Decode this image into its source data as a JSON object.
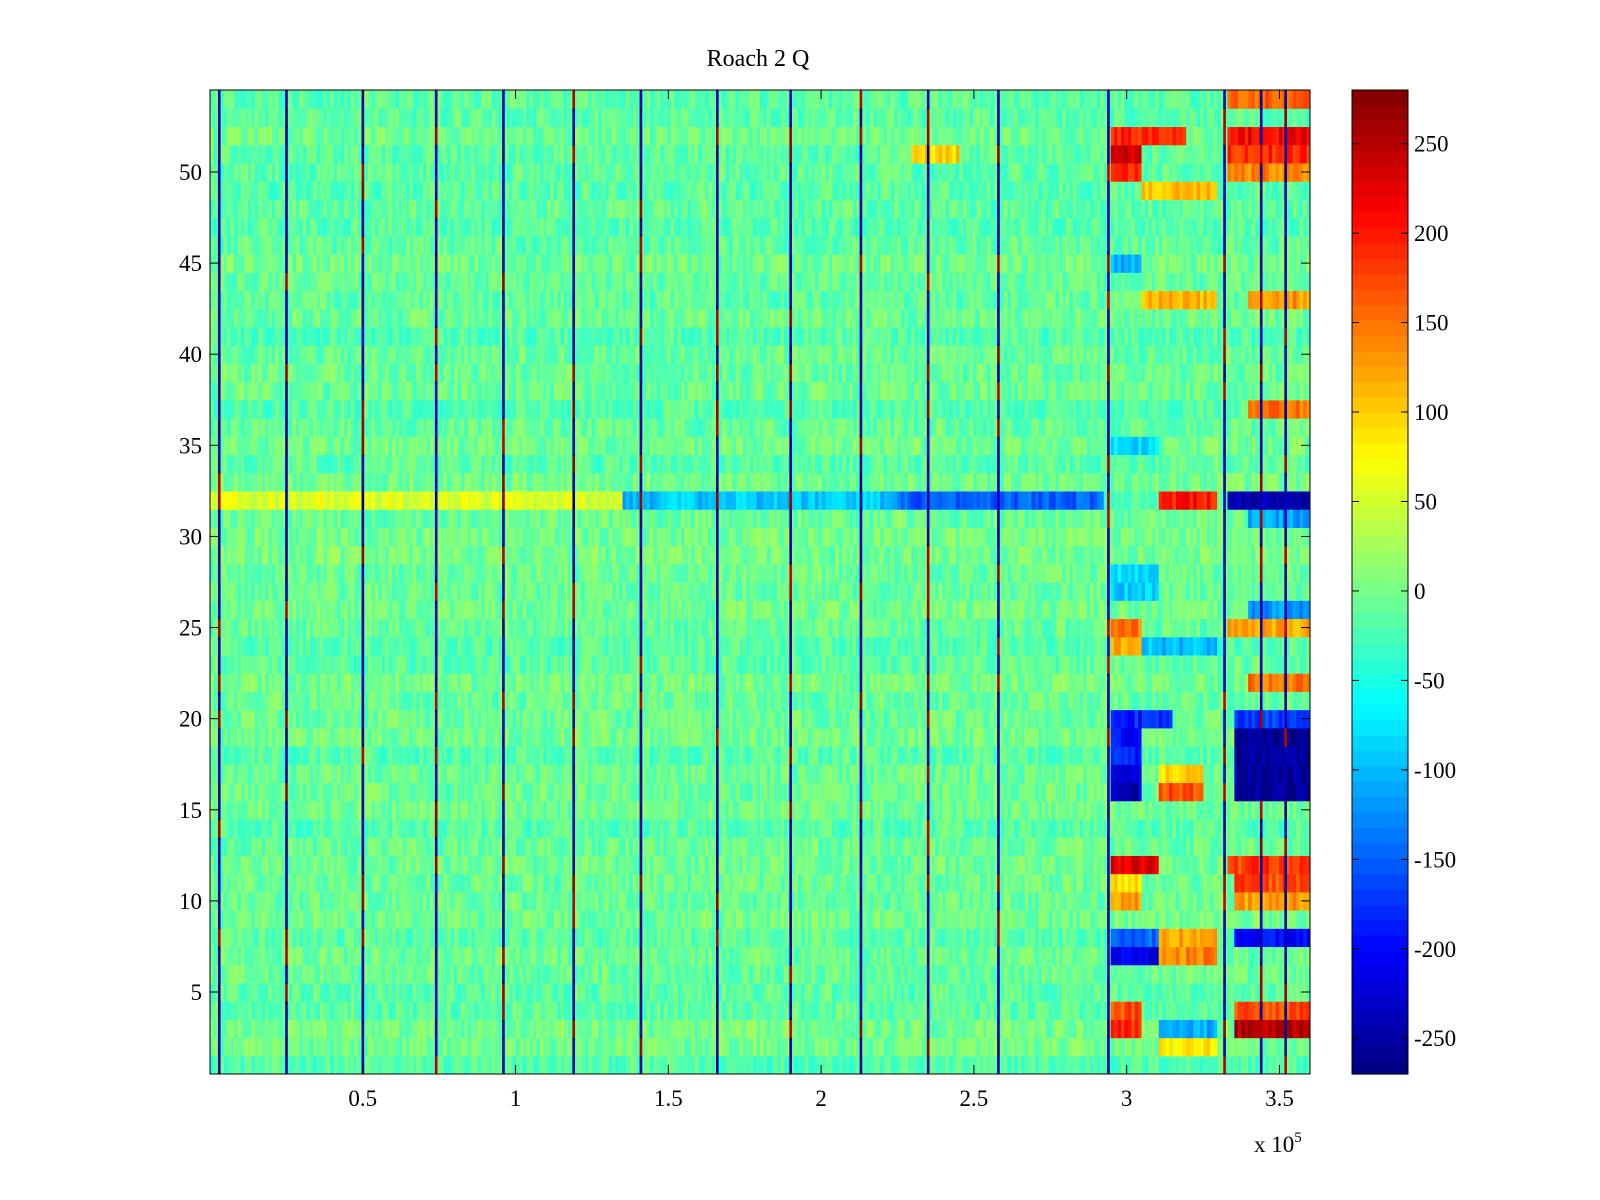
{
  "chart_data": {
    "type": "heatmap",
    "title": "Roach 2 Q",
    "xlabel": "",
    "ylabel": "",
    "x_exponent_label": "x 10",
    "x_exponent_power": "5",
    "xlim": [
      0,
      3.6
    ],
    "ylim": [
      0.5,
      54.5
    ],
    "x_ticks": [
      0.5,
      1,
      1.5,
      2,
      2.5,
      3,
      3.5
    ],
    "x_tick_labels": [
      "0.5",
      "1",
      "1.5",
      "2",
      "2.5",
      "3",
      "3.5"
    ],
    "y_ticks": [
      5,
      10,
      15,
      20,
      25,
      30,
      35,
      40,
      45,
      50
    ],
    "y_tick_labels": [
      "5",
      "10",
      "15",
      "20",
      "25",
      "30",
      "35",
      "40",
      "45",
      "50"
    ],
    "rows": 54,
    "colorbar": {
      "colormap": "jet",
      "range": [
        -270,
        280
      ],
      "ticks": [
        -250,
        -200,
        -150,
        -100,
        -50,
        0,
        50,
        100,
        150,
        200,
        250
      ],
      "tick_labels": [
        "-250",
        "-200",
        "-150",
        "-100",
        "-50",
        "0",
        "50",
        "100",
        "150",
        "200",
        "250"
      ]
    },
    "baseline_value": -10,
    "noise_amplitude": 25,
    "vertical_stripes_x": [
      0.03,
      0.25,
      0.5,
      0.74,
      0.96,
      1.19,
      1.41,
      1.66,
      1.9,
      2.13,
      2.35,
      2.58,
      2.94,
      3.32,
      3.44,
      3.52
    ],
    "stripe_values": {
      "low": -260,
      "high": 270
    },
    "features": [
      {
        "row": 32,
        "x": [
          0.0,
          1.35
        ],
        "value": 55
      },
      {
        "row": 32,
        "x": [
          1.35,
          2.25
        ],
        "value": -95
      },
      {
        "row": 32,
        "x": [
          2.25,
          2.93
        ],
        "value": -150
      },
      {
        "row": 32,
        "x": [
          3.1,
          3.3
        ],
        "value": 200
      },
      {
        "row": 32,
        "x": [
          3.33,
          3.6
        ],
        "value": -240
      },
      {
        "row": 51,
        "x": [
          2.3,
          2.45
        ],
        "value": 95
      },
      {
        "row": 52,
        "x": [
          2.95,
          3.2
        ],
        "value": 190
      },
      {
        "row": 51,
        "x": [
          2.95,
          3.05
        ],
        "value": 240
      },
      {
        "row": 50,
        "x": [
          2.95,
          3.05
        ],
        "value": 200
      },
      {
        "row": 52,
        "x": [
          3.33,
          3.6
        ],
        "value": 215
      },
      {
        "row": 51,
        "x": [
          3.33,
          3.6
        ],
        "value": 190
      },
      {
        "row": 50,
        "x": [
          3.33,
          3.6
        ],
        "value": 140
      },
      {
        "row": 54,
        "x": [
          3.33,
          3.6
        ],
        "value": 160
      },
      {
        "row": 49,
        "x": [
          3.05,
          3.3
        ],
        "value": 110
      },
      {
        "row": 45,
        "x": [
          2.95,
          3.05
        ],
        "value": -110
      },
      {
        "row": 43,
        "x": [
          3.05,
          3.3
        ],
        "value": 110
      },
      {
        "row": 43,
        "x": [
          3.4,
          3.6
        ],
        "value": 130
      },
      {
        "row": 37,
        "x": [
          3.4,
          3.6
        ],
        "value": 150
      },
      {
        "row": 35,
        "x": [
          2.95,
          3.1
        ],
        "value": -80
      },
      {
        "row": 31,
        "x": [
          3.4,
          3.6
        ],
        "value": -110
      },
      {
        "row": 28,
        "x": [
          2.95,
          3.1
        ],
        "value": -75
      },
      {
        "row": 27,
        "x": [
          2.95,
          3.1
        ],
        "value": -90
      },
      {
        "row": 26,
        "x": [
          3.4,
          3.6
        ],
        "value": -120
      },
      {
        "row": 25,
        "x": [
          2.95,
          3.05
        ],
        "value": 150
      },
      {
        "row": 24,
        "x": [
          2.95,
          3.05
        ],
        "value": 120
      },
      {
        "row": 25,
        "x": [
          3.33,
          3.6
        ],
        "value": 120
      },
      {
        "row": 24,
        "x": [
          3.05,
          3.3
        ],
        "value": -100
      },
      {
        "row": 22,
        "x": [
          3.4,
          3.6
        ],
        "value": 150
      },
      {
        "row": 20,
        "x": [
          2.95,
          3.15
        ],
        "value": -180
      },
      {
        "row": 20,
        "x": [
          3.35,
          3.6
        ],
        "value": -170
      },
      {
        "row": 19,
        "x": [
          2.95,
          3.05
        ],
        "value": -200
      },
      {
        "row": 18,
        "x": [
          2.95,
          3.05
        ],
        "value": -190
      },
      {
        "row": 19,
        "x": [
          3.35,
          3.6
        ],
        "value": -260
      },
      {
        "row": 18,
        "x": [
          3.35,
          3.6
        ],
        "value": -255
      },
      {
        "row": 17,
        "x": [
          2.95,
          3.05
        ],
        "value": -220
      },
      {
        "row": 17,
        "x": [
          3.35,
          3.6
        ],
        "value": -260
      },
      {
        "row": 16,
        "x": [
          2.95,
          3.05
        ],
        "value": -240
      },
      {
        "row": 16,
        "x": [
          3.35,
          3.6
        ],
        "value": -255
      },
      {
        "row": 16,
        "x": [
          3.1,
          3.25
        ],
        "value": 170
      },
      {
        "row": 17,
        "x": [
          3.1,
          3.25
        ],
        "value": 100
      },
      {
        "row": 12,
        "x": [
          2.95,
          3.1
        ],
        "value": 230
      },
      {
        "row": 12,
        "x": [
          3.33,
          3.6
        ],
        "value": 180
      },
      {
        "row": 11,
        "x": [
          2.95,
          3.05
        ],
        "value": 90
      },
      {
        "row": 11,
        "x": [
          3.35,
          3.6
        ],
        "value": 170
      },
      {
        "row": 10,
        "x": [
          3.35,
          3.6
        ],
        "value": 130
      },
      {
        "row": 10,
        "x": [
          2.95,
          3.05
        ],
        "value": 130
      },
      {
        "row": 8,
        "x": [
          2.95,
          3.1
        ],
        "value": -150
      },
      {
        "row": 8,
        "x": [
          3.1,
          3.3
        ],
        "value": 120
      },
      {
        "row": 8,
        "x": [
          3.35,
          3.6
        ],
        "value": -200
      },
      {
        "row": 7,
        "x": [
          2.95,
          3.1
        ],
        "value": -210
      },
      {
        "row": 7,
        "x": [
          3.1,
          3.3
        ],
        "value": 140
      },
      {
        "row": 4,
        "x": [
          2.95,
          3.05
        ],
        "value": 170
      },
      {
        "row": 3,
        "x": [
          2.95,
          3.05
        ],
        "value": 190
      },
      {
        "row": 4,
        "x": [
          3.35,
          3.6
        ],
        "value": 170
      },
      {
        "row": 3,
        "x": [
          3.35,
          3.6
        ],
        "value": 250
      },
      {
        "row": 3,
        "x": [
          3.1,
          3.3
        ],
        "value": -110
      },
      {
        "row": 2,
        "x": [
          3.1,
          3.3
        ],
        "value": 80
      }
    ]
  }
}
